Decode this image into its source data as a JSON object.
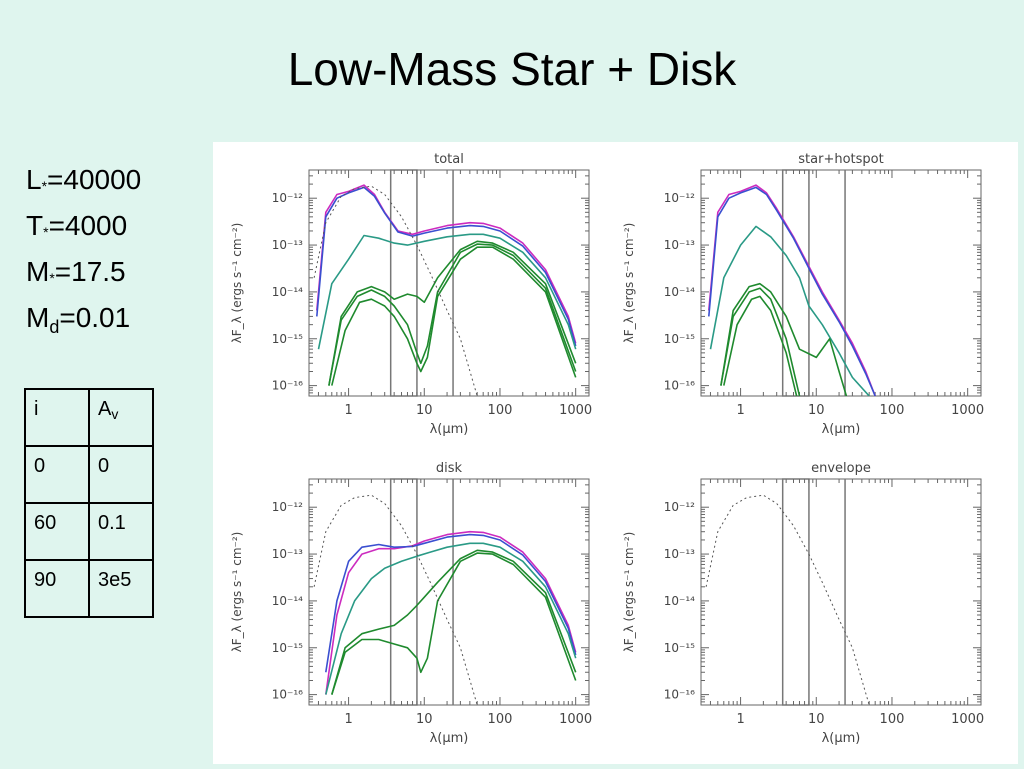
{
  "slide": {
    "title": "Low-Mass Star + Disk",
    "params": [
      {
        "sym": "L",
        "sub": "*",
        "val": "=40000"
      },
      {
        "sym": "T",
        "sub": "*",
        "val": "=4000"
      },
      {
        "sym": "M",
        "sub": "*",
        "val": "=17.5"
      },
      {
        "sym": "M",
        "sub": "d",
        "val": "=0.01"
      }
    ],
    "table": {
      "header": [
        "i",
        "A",
        "v"
      ],
      "rows": [
        [
          "0",
          "0"
        ],
        [
          "60",
          "0.1"
        ],
        [
          "90",
          "3e5"
        ]
      ]
    }
  },
  "colors": {
    "background": "#dff5ee",
    "green": "#1f8a2e",
    "teal": "#2a9a86",
    "blue": "#3a4fd0",
    "magenta": "#cc2bbf",
    "dark": "#555555"
  },
  "chart_data": [
    {
      "type": "line",
      "title": "total",
      "xlabel": "λ(μm)",
      "ylabel": "λF_λ (ergs s⁻¹ cm⁻²)",
      "xscale": "log",
      "yscale": "log",
      "xlim": [
        0.3,
        1500
      ],
      "ylim": [
        6e-17,
        4e-12
      ],
      "x_ticks": [
        1,
        10,
        100,
        1000
      ],
      "x_tick_labels": [
        "1",
        "10",
        "100",
        "1000"
      ],
      "y_tick_labels": [
        "10⁻¹⁶",
        "10⁻¹⁵",
        "10⁻¹⁴",
        "10⁻¹³",
        "10⁻¹²"
      ],
      "filter_band_box": [
        3.6,
        8.0
      ],
      "vertical_line": 24,
      "series": [
        {
          "color": "magenta",
          "x": [
            0.38,
            0.5,
            0.7,
            1.0,
            1.6,
            2.2,
            3.0,
            4.5,
            7,
            10,
            20,
            40,
            60,
            100,
            200,
            400,
            800,
            1000
          ],
          "y": [
            4e-15,
            5e-13,
            1.2e-12,
            1.4e-12,
            1.9e-12,
            1.2e-12,
            5e-13,
            2e-13,
            1.7e-13,
            2e-13,
            2.6e-13,
            3e-13,
            2.9e-13,
            2.3e-13,
            1.1e-13,
            3e-14,
            3e-15,
            8e-16
          ]
        },
        {
          "color": "blue",
          "x": [
            0.38,
            0.5,
            0.7,
            1.0,
            1.6,
            2.2,
            3.0,
            4.5,
            7,
            10,
            20,
            40,
            60,
            100,
            200,
            400,
            800,
            1000
          ],
          "y": [
            3e-15,
            4e-13,
            1e-12,
            1.3e-12,
            1.7e-12,
            1.1e-12,
            4.8e-13,
            1.9e-13,
            1.55e-13,
            1.8e-13,
            2.3e-13,
            2.6e-13,
            2.5e-13,
            2e-13,
            9.5e-14,
            2.6e-14,
            2.6e-15,
            7e-16
          ]
        },
        {
          "color": "teal",
          "x": [
            0.4,
            0.6,
            1.0,
            1.6,
            2.5,
            4,
            6,
            10,
            20,
            40,
            60,
            100,
            200,
            400,
            800,
            1000
          ],
          "y": [
            6e-16,
            1.5e-14,
            5e-14,
            1.6e-13,
            1.4e-13,
            1.1e-13,
            1e-13,
            1.2e-13,
            1.5e-13,
            1.7e-13,
            1.7e-13,
            1.4e-13,
            7e-14,
            2e-14,
            2e-15,
            6e-16
          ]
        },
        {
          "color": "green",
          "x": [
            0.55,
            0.8,
            1.3,
            2,
            3,
            4,
            6,
            8,
            10,
            15,
            30,
            50,
            80,
            150,
            400,
            1000
          ],
          "y": [
            1e-16,
            3e-15,
            1e-14,
            1.3e-14,
            1e-14,
            7e-15,
            9e-15,
            8e-15,
            6e-15,
            2e-14,
            8e-14,
            1.2e-13,
            1.1e-13,
            7e-14,
            1.5e-14,
            3e-16
          ]
        },
        {
          "color": "green",
          "x": [
            0.55,
            0.8,
            1.3,
            2,
            3,
            4,
            6,
            8,
            9,
            11,
            15,
            30,
            50,
            80,
            150,
            400,
            1000
          ],
          "y": [
            1e-16,
            2.5e-15,
            8e-15,
            1.1e-14,
            8e-15,
            5e-15,
            2e-15,
            5e-16,
            3e-16,
            7e-16,
            1e-14,
            7e-14,
            1.05e-13,
            1e-13,
            6e-14,
            1.2e-14,
            2e-16
          ]
        },
        {
          "color": "green",
          "x": [
            0.6,
            0.9,
            1.4,
            2,
            3,
            4,
            6,
            8,
            9,
            11,
            15,
            30,
            50,
            80,
            150,
            400,
            1000
          ],
          "y": [
            1e-16,
            1.5e-15,
            6e-15,
            7e-15,
            5e-15,
            3e-15,
            1e-15,
            3e-16,
            2e-16,
            4e-16,
            8e-15,
            5e-14,
            9e-14,
            9e-14,
            5e-14,
            1e-14,
            1.5e-16
          ]
        },
        {
          "color": "dark",
          "dashed": true,
          "x": [
            0.35,
            0.5,
            0.8,
            1.2,
            2,
            3,
            5,
            8,
            12,
            20,
            30,
            50
          ],
          "y": [
            2e-14,
            3e-13,
            1.1e-12,
            1.6e-12,
            1.8e-12,
            1.2e-12,
            4e-13,
            1e-13,
            2.5e-14,
            4e-15,
            1e-15,
            6e-17
          ]
        }
      ]
    },
    {
      "type": "line",
      "title": "star+hotspot",
      "xlabel": "λ(μm)",
      "ylabel": "λF_λ (ergs s⁻¹ cm⁻²)",
      "xscale": "log",
      "yscale": "log",
      "xlim": [
        0.3,
        1500
      ],
      "ylim": [
        6e-17,
        4e-12
      ],
      "x_ticks": [
        1,
        10,
        100,
        1000
      ],
      "x_tick_labels": [
        "1",
        "10",
        "100",
        "1000"
      ],
      "y_tick_labels": [
        "10⁻¹⁶",
        "10⁻¹⁵",
        "10⁻¹⁴",
        "10⁻¹³",
        "10⁻¹²"
      ],
      "filter_band_box": [
        3.6,
        8.0
      ],
      "vertical_line": 24,
      "series": [
        {
          "color": "magenta",
          "x": [
            0.38,
            0.5,
            0.7,
            1.0,
            1.6,
            2.2,
            3,
            5,
            8,
            12,
            20,
            30,
            45,
            60
          ],
          "y": [
            4e-15,
            5e-13,
            1.2e-12,
            1.4e-12,
            1.9e-12,
            1.3e-12,
            6e-13,
            1.5e-13,
            3.5e-14,
            1e-14,
            2.5e-15,
            8e-16,
            2e-16,
            6e-17
          ]
        },
        {
          "color": "blue",
          "x": [
            0.38,
            0.5,
            0.7,
            1.0,
            1.6,
            2.2,
            3,
            5,
            8,
            12,
            20,
            30,
            45,
            60
          ],
          "y": [
            3e-15,
            4e-13,
            1e-12,
            1.3e-12,
            1.7e-12,
            1.2e-12,
            5.5e-13,
            1.4e-13,
            3.2e-14,
            9e-15,
            2.3e-15,
            7e-16,
            1.8e-16,
            6e-17
          ]
        },
        {
          "color": "teal",
          "x": [
            0.4,
            0.6,
            1.0,
            1.6,
            2.5,
            4,
            6,
            8,
            12,
            20,
            30,
            50
          ],
          "y": [
            6e-16,
            2e-14,
            1e-13,
            2.5e-13,
            1.5e-13,
            6e-14,
            2e-14,
            5e-15,
            2e-15,
            5e-16,
            1.5e-16,
            6e-17
          ]
        },
        {
          "color": "green",
          "x": [
            0.55,
            0.8,
            1.3,
            1.8,
            2.5,
            4,
            6,
            10,
            15,
            20,
            25
          ],
          "y": [
            1e-16,
            4e-15,
            1.3e-14,
            1.5e-14,
            1e-14,
            3e-15,
            6e-16,
            4e-16,
            1e-15,
            2e-16,
            6e-17
          ]
        },
        {
          "color": "green",
          "x": [
            0.55,
            0.8,
            1.3,
            1.8,
            2.5,
            4,
            6
          ],
          "y": [
            1e-16,
            3e-15,
            1e-14,
            1.2e-14,
            7e-15,
            1e-15,
            6e-17
          ]
        },
        {
          "color": "green",
          "x": [
            0.6,
            0.9,
            1.4,
            1.8,
            2.5,
            4,
            5.5
          ],
          "y": [
            1e-16,
            2e-15,
            7e-15,
            8e-15,
            4e-15,
            5e-16,
            6e-17
          ]
        }
      ]
    },
    {
      "type": "line",
      "title": "disk",
      "xlabel": "λ(μm)",
      "ylabel": "λF_λ (ergs s⁻¹ cm⁻²)",
      "xscale": "log",
      "yscale": "log",
      "xlim": [
        0.3,
        1500
      ],
      "ylim": [
        6e-17,
        4e-12
      ],
      "x_ticks": [
        1,
        10,
        100,
        1000
      ],
      "x_tick_labels": [
        "1",
        "10",
        "100",
        "1000"
      ],
      "y_tick_labels": [
        "10⁻¹⁶",
        "10⁻¹⁵",
        "10⁻¹⁴",
        "10⁻¹³",
        "10⁻¹²"
      ],
      "filter_band_box": [
        3.6,
        8.0
      ],
      "vertical_line": 24,
      "series": [
        {
          "color": "magenta",
          "x": [
            0.5,
            0.7,
            1,
            1.5,
            2.5,
            4,
            7,
            10,
            20,
            40,
            60,
            100,
            200,
            400,
            800,
            1000
          ],
          "y": [
            1e-16,
            5e-15,
            4e-14,
            1e-13,
            1.3e-13,
            1.3e-13,
            1.5e-13,
            1.9e-13,
            2.6e-13,
            3e-13,
            2.9e-13,
            2.3e-13,
            1.1e-13,
            3e-14,
            3e-15,
            8e-16
          ]
        },
        {
          "color": "blue",
          "x": [
            0.5,
            0.7,
            1,
            1.5,
            2.5,
            4,
            7,
            10,
            20,
            40,
            60,
            100,
            200,
            400,
            800,
            1000
          ],
          "y": [
            3e-16,
            1e-14,
            7e-14,
            1.4e-13,
            1.6e-13,
            1.4e-13,
            1.45e-13,
            1.7e-13,
            2.3e-13,
            2.6e-13,
            2.5e-13,
            2e-13,
            9.5e-14,
            2.6e-14,
            2.6e-15,
            7e-16
          ]
        },
        {
          "color": "teal",
          "x": [
            0.5,
            0.8,
            1.2,
            2,
            3,
            5,
            8,
            12,
            20,
            40,
            60,
            100,
            200,
            400,
            800,
            1000
          ],
          "y": [
            1e-16,
            2e-15,
            1e-14,
            3e-14,
            5e-14,
            7e-14,
            9e-14,
            1.1e-13,
            1.4e-13,
            1.7e-13,
            1.7e-13,
            1.4e-13,
            7e-14,
            2e-14,
            2e-15,
            6e-16
          ]
        },
        {
          "color": "green",
          "x": [
            0.6,
            0.9,
            1.5,
            2.5,
            4,
            6,
            8,
            10,
            15,
            30,
            50,
            80,
            150,
            400,
            1000
          ],
          "y": [
            1e-16,
            1e-15,
            2e-15,
            2.5e-15,
            3e-15,
            5e-15,
            8e-15,
            1.2e-14,
            2.5e-14,
            8e-14,
            1.2e-13,
            1.1e-13,
            7e-14,
            1.5e-14,
            3e-16
          ]
        },
        {
          "color": "green",
          "x": [
            0.6,
            0.9,
            1.5,
            2.5,
            4,
            6,
            8,
            9,
            11,
            15,
            30,
            50,
            80,
            150,
            400,
            1000
          ],
          "y": [
            1e-16,
            8e-16,
            1.5e-15,
            1.5e-15,
            1.2e-15,
            1e-15,
            6e-16,
            3e-16,
            6e-16,
            1e-14,
            7e-14,
            1.05e-13,
            1e-13,
            6e-14,
            1.2e-14,
            2e-16
          ]
        },
        {
          "color": "dark",
          "dashed": true,
          "x": [
            0.35,
            0.5,
            0.8,
            1.2,
            2,
            3,
            5,
            8,
            12,
            20,
            30,
            50
          ],
          "y": [
            2e-14,
            3e-13,
            1.1e-12,
            1.6e-12,
            1.8e-12,
            1.2e-12,
            4e-13,
            1e-13,
            2.5e-14,
            4e-15,
            1e-15,
            6e-17
          ]
        }
      ]
    },
    {
      "type": "line",
      "title": "envelope",
      "xlabel": "λ(μm)",
      "ylabel": "λF_λ (ergs s⁻¹ cm⁻²)",
      "xscale": "log",
      "yscale": "log",
      "xlim": [
        0.3,
        1500
      ],
      "ylim": [
        6e-17,
        4e-12
      ],
      "x_ticks": [
        1,
        10,
        100,
        1000
      ],
      "x_tick_labels": [
        "1",
        "10",
        "100",
        "1000"
      ],
      "y_tick_labels": [
        "10⁻¹⁶",
        "10⁻¹⁵",
        "10⁻¹⁴",
        "10⁻¹³",
        "10⁻¹²"
      ],
      "filter_band_box": [
        3.6,
        8.0
      ],
      "vertical_line": 24,
      "series": [
        {
          "color": "dark",
          "dashed": true,
          "x": [
            0.35,
            0.5,
            0.8,
            1.2,
            2,
            3,
            5,
            8,
            12,
            20,
            30,
            50
          ],
          "y": [
            2e-14,
            3e-13,
            1.1e-12,
            1.6e-12,
            1.8e-12,
            1.2e-12,
            4e-13,
            1e-13,
            2.5e-14,
            4e-15,
            1e-15,
            6e-17
          ]
        }
      ]
    }
  ]
}
